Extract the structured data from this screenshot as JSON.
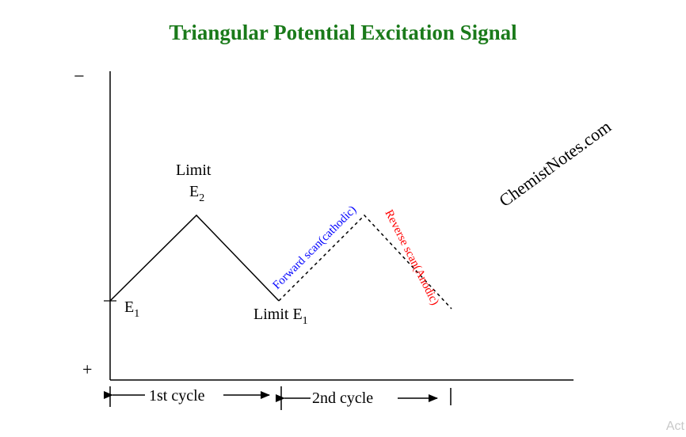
{
  "title": "Triangular Potential Excitation Signal",
  "axis": {
    "minus_sign": "−",
    "plus_sign": "+"
  },
  "points": {
    "start_label": "E",
    "start_sub": "1",
    "peak_label_top": "Limit",
    "peak_label": "E",
    "peak_sub": "2",
    "valley_label": "Limit E",
    "valley_sub": "1"
  },
  "scans": {
    "forward": "Forward scan(cathodic)",
    "reverse": "Reverse scan(Anodic)",
    "forward_color": "#0000ff",
    "reverse_color": "#ff0000"
  },
  "cycles": {
    "first": "1st cycle",
    "second": "2nd cycle"
  },
  "watermark": "ChemistNotes.com",
  "corner_text": "Act",
  "colors": {
    "title": "#1a7a1a",
    "line": "#000000"
  }
}
